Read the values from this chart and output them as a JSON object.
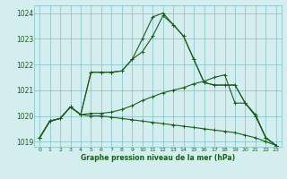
{
  "background_color": "#d4eef0",
  "grid_color": "#7fbfc9",
  "line_color": "#1a5c1a",
  "xlabel": "Graphe pression niveau de la mer (hPa)",
  "xlim": [
    -0.5,
    23.5
  ],
  "ylim": [
    1018.8,
    1024.3
  ],
  "yticks": [
    1019,
    1020,
    1021,
    1022,
    1023,
    1024
  ],
  "xticks": [
    0,
    1,
    2,
    3,
    4,
    5,
    6,
    7,
    8,
    9,
    10,
    11,
    12,
    13,
    14,
    15,
    16,
    17,
    18,
    19,
    20,
    21,
    22,
    23
  ],
  "series": [
    [
      1019.15,
      1019.8,
      1019.9,
      1020.35,
      1020.05,
      1021.7,
      1021.7,
      1021.7,
      1021.75,
      1022.2,
      1022.5,
      1023.1,
      1023.9,
      1023.55,
      1023.1,
      1022.2,
      1021.3,
      1021.2,
      1021.2,
      1021.2,
      1020.5,
      1020.0,
      1019.15,
      1018.85
    ],
    [
      1019.15,
      1019.8,
      1019.9,
      1020.35,
      1020.05,
      1021.7,
      1021.7,
      1021.7,
      1021.75,
      1022.2,
      1023.0,
      1023.85,
      1024.0,
      1023.55,
      1023.1,
      1022.2,
      1021.3,
      1021.2,
      1021.2,
      1021.2,
      1020.5,
      1020.0,
      1019.15,
      1018.85
    ],
    [
      1019.15,
      1019.8,
      1019.9,
      1020.35,
      1020.05,
      1020.1,
      1020.1,
      1020.15,
      1020.25,
      1020.4,
      1020.6,
      1020.75,
      1020.9,
      1021.0,
      1021.1,
      1021.25,
      1021.35,
      1021.5,
      1021.6,
      1020.5,
      1020.5,
      1020.05,
      1019.15,
      1018.85
    ],
    [
      1019.15,
      1019.8,
      1019.9,
      1020.35,
      1020.05,
      1020.0,
      1020.0,
      1019.95,
      1019.9,
      1019.85,
      1019.8,
      1019.75,
      1019.7,
      1019.65,
      1019.6,
      1019.55,
      1019.5,
      1019.45,
      1019.4,
      1019.35,
      1019.25,
      1019.15,
      1019.0,
      1018.85
    ]
  ]
}
